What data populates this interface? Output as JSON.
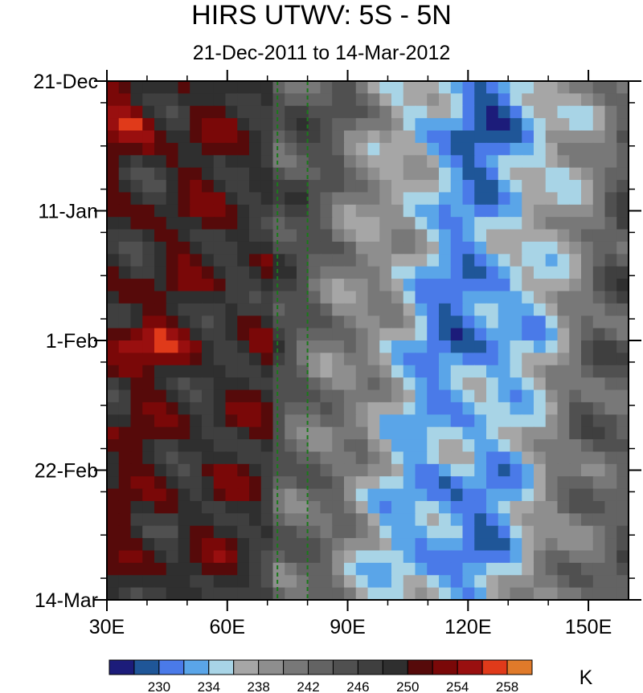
{
  "chart_data": {
    "type": "heatmap",
    "title": "HIRS UTWV: 5S - 5N",
    "subtitle": "21-Dec-2011 to 14-Mar-2012",
    "x_ticks": [
      {
        "value": 30,
        "label": "30E"
      },
      {
        "value": 60,
        "label": "60E"
      },
      {
        "value": 90,
        "label": "90E"
      },
      {
        "value": 120,
        "label": "120E"
      },
      {
        "value": 150,
        "label": "150E"
      }
    ],
    "xlim": [
      30,
      160
    ],
    "y_ticks": [
      {
        "value": 0,
        "label": "21-Dec"
      },
      {
        "value": 21,
        "label": "11-Jan"
      },
      {
        "value": 42,
        "label": "1-Feb"
      },
      {
        "value": 63,
        "label": "22-Feb"
      },
      {
        "value": 84,
        "label": "14-Mar"
      }
    ],
    "ylim_days": [
      0,
      84
    ],
    "reference_lines_lon": [
      72.5,
      80
    ],
    "colorbar": {
      "unit": "K",
      "levels": [
        226,
        228,
        230,
        232,
        234,
        236,
        238,
        240,
        242,
        244,
        246,
        248,
        250,
        252,
        254,
        256,
        258,
        260
      ],
      "labels": [
        "230",
        "234",
        "238",
        "242",
        "246",
        "250",
        "254",
        "258"
      ],
      "label_values": [
        230,
        234,
        238,
        242,
        246,
        250,
        254,
        258
      ],
      "colors": [
        "#1c1c7a",
        "#1f5698",
        "#4a7ae8",
        "#5aa5e8",
        "#a8d4e6",
        "#a6a6a6",
        "#8e8e8e",
        "#787878",
        "#636363",
        "#505050",
        "#3f3f3f",
        "#2f2f2f",
        "#560a0a",
        "#7a0808",
        "#990f0f",
        "#e03a1a",
        "#e07a2a"
      ]
    }
  }
}
